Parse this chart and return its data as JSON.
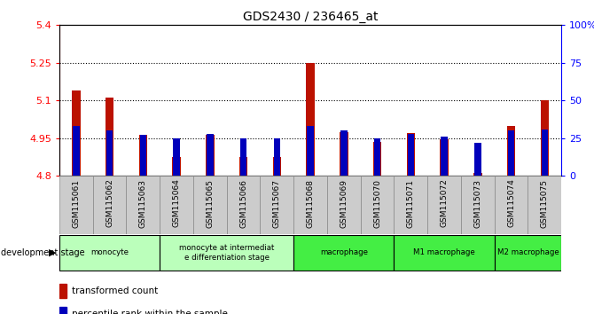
{
  "title": "GDS2430 / 236465_at",
  "samples": [
    "GSM115061",
    "GSM115062",
    "GSM115063",
    "GSM115064",
    "GSM115065",
    "GSM115066",
    "GSM115067",
    "GSM115068",
    "GSM115069",
    "GSM115070",
    "GSM115071",
    "GSM115072",
    "GSM115073",
    "GSM115074",
    "GSM115075"
  ],
  "red_values": [
    5.14,
    5.11,
    4.965,
    4.875,
    4.965,
    4.875,
    4.875,
    5.25,
    4.975,
    4.935,
    4.97,
    4.945,
    4.81,
    5.0,
    5.1
  ],
  "blue_percentile": [
    33,
    30,
    27,
    25,
    28,
    25,
    25,
    33,
    30,
    25,
    28,
    26,
    22,
    30,
    31
  ],
  "ylim_left": [
    4.8,
    5.4
  ],
  "yticks_left": [
    4.8,
    4.95,
    5.1,
    5.25,
    5.4
  ],
  "yticks_right": [
    0,
    25,
    50,
    75,
    100
  ],
  "gridlines": [
    4.95,
    5.1,
    5.25
  ],
  "groups": [
    {
      "label": "monocyte",
      "start": 0,
      "end": 3,
      "color": "#bbffbb"
    },
    {
      "label": "monocyte at intermediat\ne differentiation stage",
      "start": 3,
      "end": 7,
      "color": "#bbffbb"
    },
    {
      "label": "macrophage",
      "start": 7,
      "end": 10,
      "color": "#44ee44"
    },
    {
      "label": "M1 macrophage",
      "start": 10,
      "end": 13,
      "color": "#44ee44"
    },
    {
      "label": "M2 macrophage",
      "start": 13,
      "end": 15,
      "color": "#44ee44"
    }
  ],
  "red_color": "#bb1100",
  "blue_color": "#0000bb",
  "cell_bg": "#cccccc",
  "plot_bg": "#ffffff"
}
